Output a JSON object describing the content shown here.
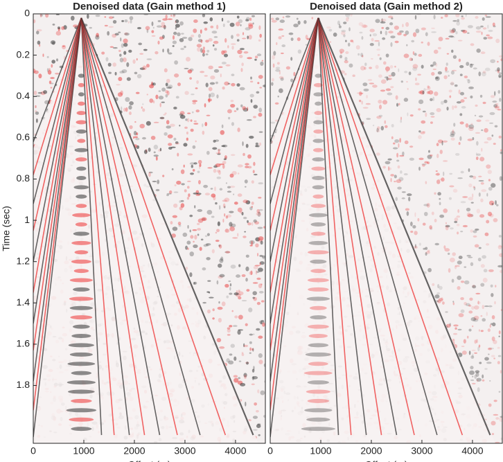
{
  "chart_data": [
    {
      "type": "image",
      "title": "Denoised data (Gain method 1)",
      "xlabel": "Offset (m)",
      "ylabel": "Time (sec)",
      "xlim": [
        0,
        4590
      ],
      "xticks": [
        0,
        1000,
        2000,
        3000,
        4000
      ],
      "ylim": [
        0,
        2.08
      ],
      "yticks": [
        0,
        0.2,
        0.4,
        0.6,
        0.8,
        1,
        1.2,
        1.4,
        1.6,
        1.8
      ],
      "y_reversed": true
    },
    {
      "type": "image",
      "title": "Denoised data (Gain method 2)",
      "xlabel": "Offset (m)",
      "xlim": [
        0,
        4590
      ],
      "xticks": [
        0,
        1000,
        2000,
        3000,
        4000
      ],
      "ylim": [
        0,
        2.08
      ],
      "y_reversed": true
    }
  ]
}
